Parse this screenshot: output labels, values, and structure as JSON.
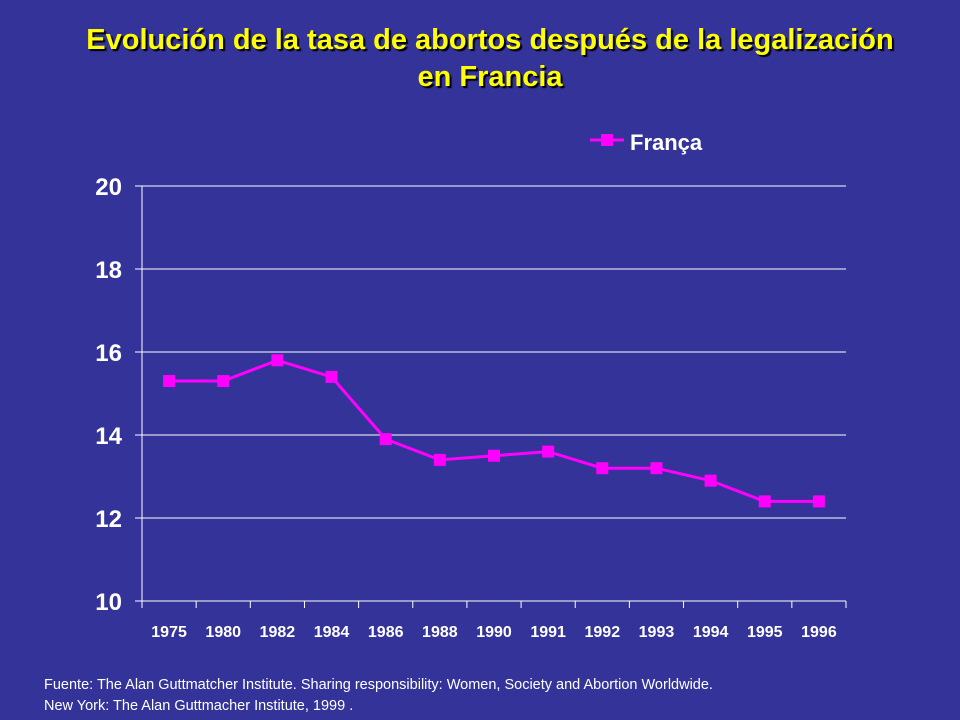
{
  "title": {
    "line1": "Evolución de la tasa de abortos después de la legalización",
    "line2": "en Francia"
  },
  "colors": {
    "background": "#333399",
    "title": "#ffff00",
    "series": "#ff00ff",
    "grid": "#ffffff",
    "text": "#ffffff"
  },
  "chart_data": {
    "type": "line",
    "title": "Evolución de la tasa de abortos después de la legalización en Francia",
    "xlabel": "",
    "ylabel": "",
    "categories": [
      "1975",
      "1980",
      "1982",
      "1984",
      "1986",
      "1988",
      "1990",
      "1991",
      "1992",
      "1993",
      "1994",
      "1995",
      "1996"
    ],
    "series": [
      {
        "name": "França",
        "values": [
          15.3,
          15.3,
          15.8,
          15.4,
          13.9,
          13.4,
          13.5,
          13.6,
          13.2,
          13.2,
          12.9,
          12.4,
          12.4
        ]
      }
    ],
    "ylim": [
      10,
      20
    ],
    "yticks": [
      "10",
      "12",
      "14",
      "16",
      "18",
      "20"
    ],
    "grid": true,
    "legend": "top-right"
  },
  "source": {
    "line1": "Fuente: The Alan Guttmatcher Institute. Sharing responsibility: Women, Society and Abortion Worldwide.",
    "line2": "New York: The Alan Guttmacher Institute, 1999 ."
  }
}
